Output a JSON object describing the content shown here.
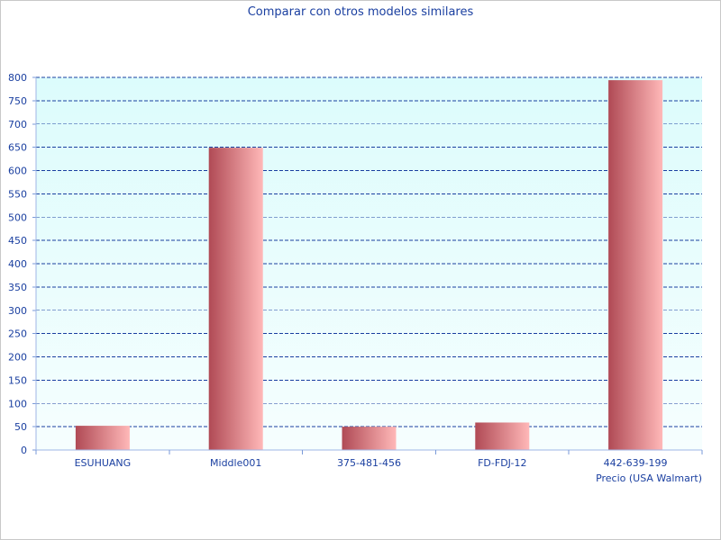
{
  "chart_data": {
    "type": "bar",
    "title": "Comparar con otros modelos similares",
    "xlabel": "Precio (USA Walmart)",
    "ylabel": "",
    "categories": [
      "ESUHUANG",
      "Middle001",
      "375-481-456",
      "FD-FDJ-12",
      "442-639-199"
    ],
    "values": [
      52,
      649,
      50,
      59,
      794
    ],
    "ylim": [
      0,
      800
    ],
    "yticks": [
      "0",
      "50",
      "100",
      "150",
      "200",
      "250",
      "300",
      "350",
      "400",
      "450",
      "500",
      "550",
      "600",
      "650",
      "700",
      "750",
      "800"
    ],
    "grid": true,
    "colors": {
      "bar_dark": "#b04a55",
      "bar_light": "#ffb8b8",
      "plot_top": "#dcfcfc",
      "plot_bottom": "#f6fefe",
      "grid": "#1a3fa0",
      "text": "#1a3fa0"
    }
  }
}
